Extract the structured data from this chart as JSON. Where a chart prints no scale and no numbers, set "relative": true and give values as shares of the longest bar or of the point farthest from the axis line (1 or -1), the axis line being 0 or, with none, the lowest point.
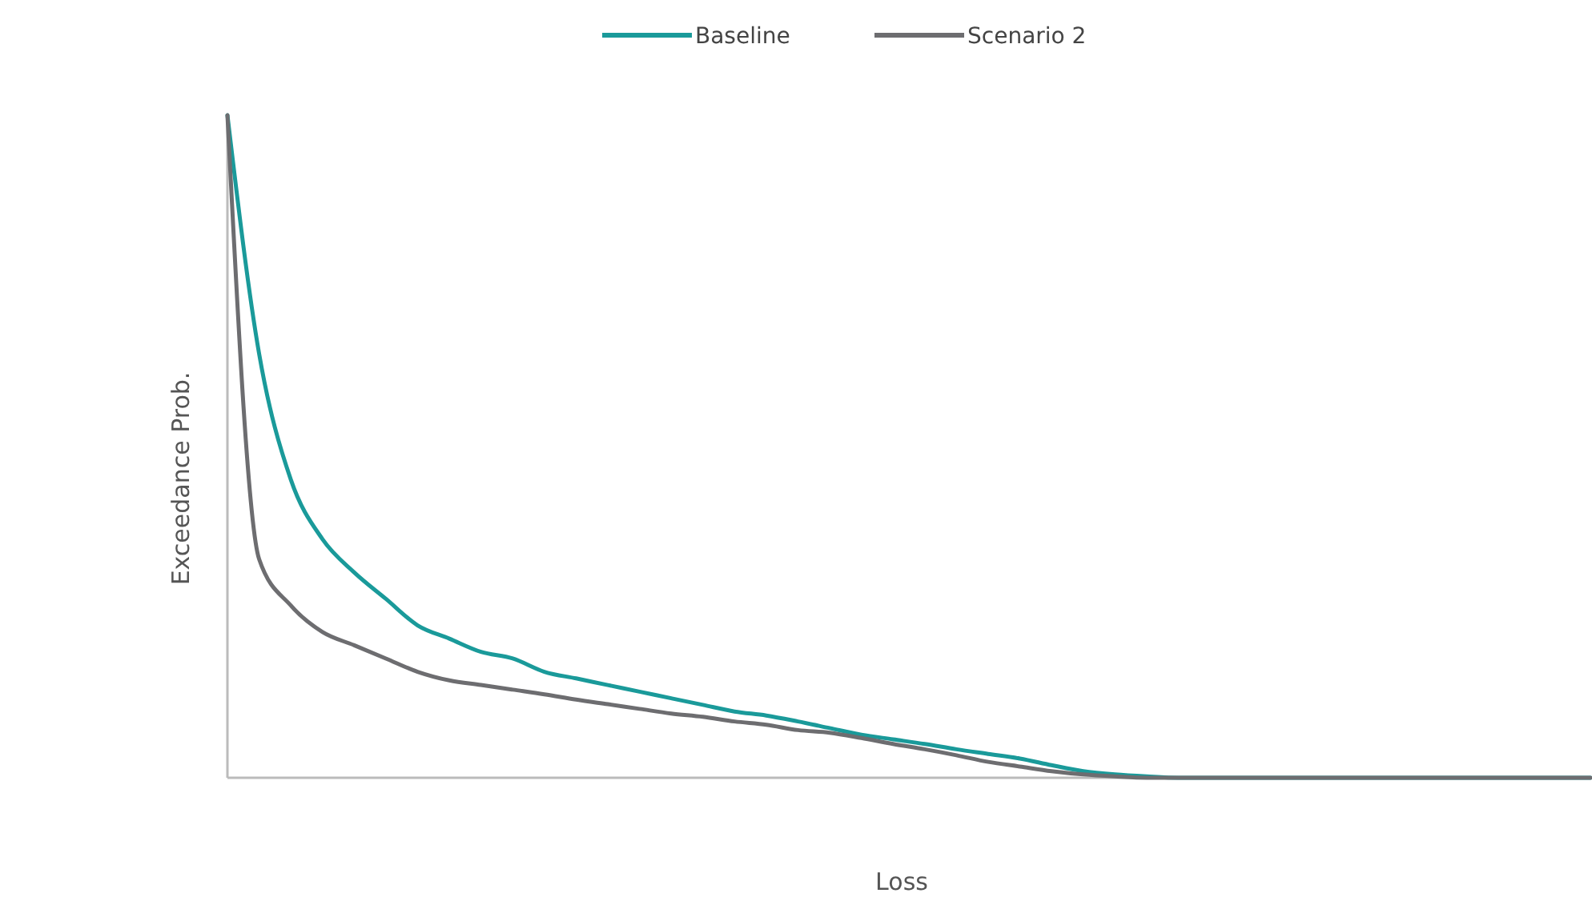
{
  "chart_data": {
    "type": "line",
    "relative": true,
    "xlabel": "Loss",
    "ylabel": "Exceedance Prob.",
    "legend": "top",
    "grid": false,
    "marker": "none",
    "line_style": "solid",
    "categories": [
      null,
      null,
      null,
      null,
      null,
      null,
      null,
      null,
      null,
      null,
      null,
      null,
      null,
      null,
      null,
      null,
      null,
      null,
      null,
      null,
      null,
      null,
      null,
      null,
      null,
      null,
      null,
      null,
      null,
      null,
      null,
      null,
      null,
      null,
      null,
      null,
      null,
      null,
      null,
      null,
      null,
      null,
      null,
      null
    ],
    "series": [
      {
        "name": "Baseline",
        "color": "#1a9a9a",
        "values": [
          1,
          0.64,
          0.45,
          0.36,
          0.31,
          0.27,
          0.23,
          0.21,
          0.19,
          0.18,
          0.16,
          0.15,
          0.14,
          0.13,
          0.12,
          0.11,
          0.1,
          0.094,
          0.085,
          0.075,
          0.065,
          0.058,
          0.051,
          0.043,
          0.036,
          0.029,
          0.019,
          0.01,
          0.005,
          0.002,
          0,
          0,
          0,
          0,
          0,
          0,
          0,
          0,
          0,
          0,
          0,
          0,
          0,
          0
        ]
      },
      {
        "name": "Scenario 2",
        "color": "#6d6d70",
        "values": [
          1,
          0.33,
          0.26,
          0.22,
          0.2,
          0.18,
          0.16,
          0.147,
          0.14,
          0.133,
          0.126,
          0.118,
          0.111,
          0.104,
          0.097,
          0.092,
          0.085,
          0.08,
          0.072,
          0.068,
          0.06,
          0.051,
          0.043,
          0.034,
          0.024,
          0.017,
          0.01,
          0.005,
          0.002,
          0,
          0,
          0,
          0,
          0,
          0,
          0,
          0,
          0,
          0,
          0,
          0,
          0,
          0,
          0
        ]
      }
    ]
  }
}
